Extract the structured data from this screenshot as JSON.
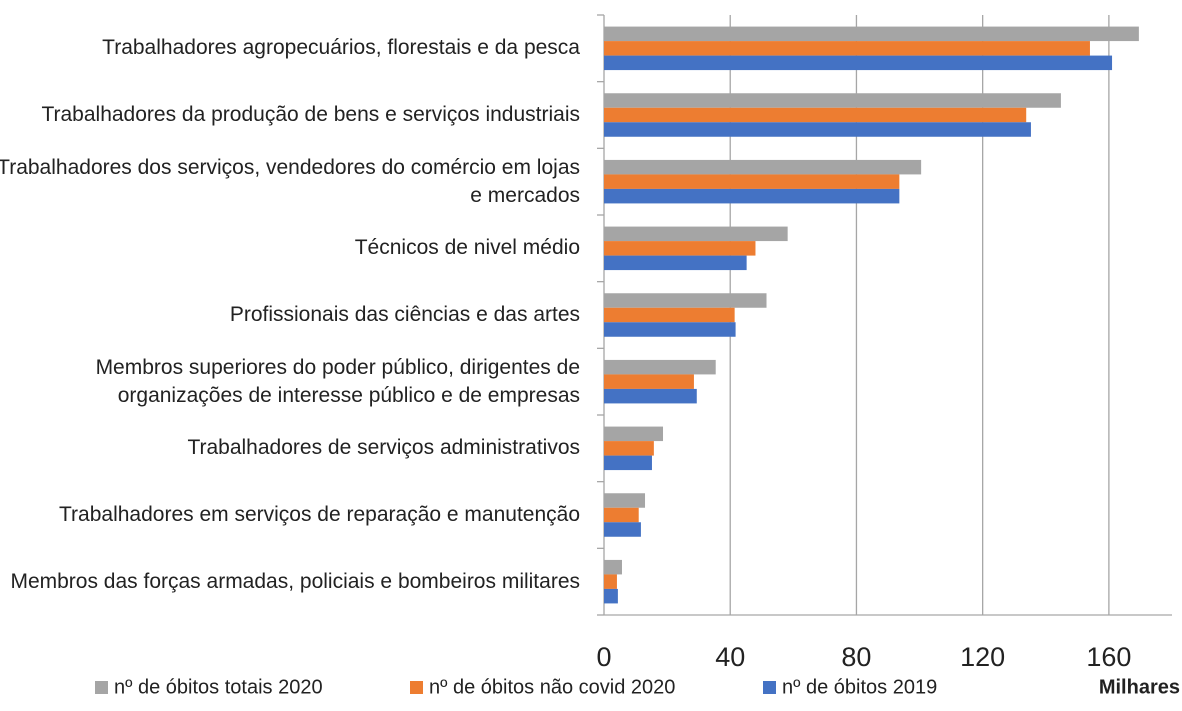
{
  "chart_data": {
    "type": "bar",
    "orientation": "horizontal",
    "categories": [
      "Trabalhadores agropecuários, florestais e da pesca",
      "Trabalhadores da produção de bens e serviços industriais",
      "Trabalhadores dos serviços, vendedores do comércio em lojas e mercados",
      "Técnicos de nivel médio",
      "Profissionais das ciências e das artes",
      "Membros superiores do poder público, dirigentes de organizações de interesse público e de empresas",
      "Trabalhadores de serviços administrativos",
      "Trabalhadores em serviços de reparação e manutenção",
      "Membros das forças armadas, policiais e bombeiros militares"
    ],
    "series": [
      {
        "name": "nº de óbitos totais 2020",
        "color": "#a5a5a5",
        "values": [
          169.5,
          144.8,
          100.5,
          58.2,
          51.5,
          35.4,
          18.7,
          13,
          5.7
        ]
      },
      {
        "name": "nº de óbitos não covid 2020",
        "color": "#ed7d31",
        "values": [
          154,
          133.8,
          93.6,
          48,
          41.4,
          28.5,
          15.8,
          11,
          4.1
        ]
      },
      {
        "name": "nº de óbitos 2019",
        "color": "#4472c4",
        "values": [
          161,
          135.3,
          93.6,
          45.2,
          41.7,
          29.4,
          15.2,
          11.7,
          4.4
        ]
      }
    ],
    "xlim": [
      0,
      180
    ],
    "xticks": [
      0,
      40,
      80,
      120,
      160
    ],
    "x_label": "Milhares",
    "grid": true,
    "legend": "bottom"
  }
}
